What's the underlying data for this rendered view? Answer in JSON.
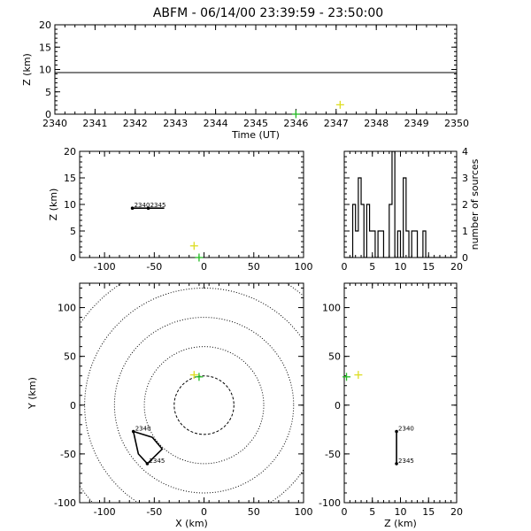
{
  "title": "ABFM - 06/14/00 23:39:59 - 23:50:00",
  "chart_data": [
    {
      "id": "time-height",
      "type": "scatter",
      "xlabel": "Time (UT)",
      "ylabel": "Z (km)",
      "xlim": [
        2340,
        2350
      ],
      "ylim": [
        0,
        20
      ],
      "xticks": [
        2340,
        2341,
        2342,
        2343,
        2344,
        2345,
        2346,
        2347,
        2348,
        2349,
        2350
      ],
      "yticks": [
        0,
        5,
        10,
        15,
        20
      ],
      "hlines": [
        {
          "y": 9.3,
          "color": "#000000"
        }
      ],
      "markers": [
        {
          "x": 2346.0,
          "y": 0,
          "color": "#22bb22",
          "symbol": "+"
        },
        {
          "x": 2347.1,
          "y": 2.1,
          "color": "#dddd22",
          "symbol": "+"
        }
      ]
    },
    {
      "id": "xz",
      "type": "scatter",
      "xlabel": "",
      "ylabel": "Z (km)",
      "xlim": [
        -125,
        100
      ],
      "ylim": [
        0,
        20
      ],
      "xticks": [
        -100,
        -50,
        0,
        50,
        100
      ],
      "yticks": [
        0,
        5,
        10,
        15,
        20
      ],
      "track": [
        [
          -72,
          9.3
        ],
        [
          -56,
          9.3
        ],
        [
          -40,
          9.3
        ]
      ],
      "labels": [
        {
          "x": -72,
          "y": 9.3,
          "text": "2340"
        },
        {
          "x": -56,
          "y": 9.3,
          "text": "2345"
        }
      ],
      "markers": [
        {
          "x": -10,
          "y": 2.2,
          "color": "#dddd22",
          "symbol": "+"
        },
        {
          "x": -5,
          "y": 0,
          "color": "#22bb22",
          "symbol": "+"
        }
      ]
    },
    {
      "id": "histogram",
      "type": "bar",
      "xlabel": "",
      "ylabel": "number of sources",
      "xlim": [
        0,
        20
      ],
      "ylim": [
        0,
        4
      ],
      "xticks": [
        0,
        5,
        10,
        15,
        20
      ],
      "yticks": [
        0,
        1,
        2,
        3,
        4
      ],
      "bin_width": 0.5,
      "bin_start": 0.5,
      "counts": [
        0,
        0,
        2,
        1,
        3,
        2,
        0,
        2,
        1,
        1,
        0,
        1,
        1,
        0,
        0,
        2,
        4,
        0,
        1,
        0,
        3,
        1,
        0,
        1,
        1,
        0,
        0,
        1,
        0,
        0,
        0,
        0,
        0,
        0,
        0,
        0,
        0,
        0,
        0
      ]
    },
    {
      "id": "xy",
      "type": "scatter",
      "xlabel": "X (km)",
      "ylabel": "Y (km)",
      "xlim": [
        -125,
        100
      ],
      "ylim": [
        -100,
        125
      ],
      "xticks": [
        -100,
        -50,
        0,
        50,
        100
      ],
      "yticks": [
        -100,
        -50,
        0,
        50,
        100
      ],
      "center": [
        0,
        0
      ],
      "range_rings_km": [
        30,
        60,
        90,
        120,
        150
      ],
      "track": [
        [
          -71,
          -27
        ],
        [
          -66,
          -50
        ],
        [
          -57,
          -60
        ],
        [
          -42,
          -45
        ],
        [
          -52,
          -33
        ],
        [
          -71,
          -27
        ]
      ],
      "labels": [
        {
          "x": -71,
          "y": -27,
          "text": "2340"
        },
        {
          "x": -57,
          "y": -60,
          "text": "2345"
        }
      ],
      "markers": [
        {
          "x": -10,
          "y": 31,
          "color": "#dddd22",
          "symbol": "+"
        },
        {
          "x": -5,
          "y": 29,
          "color": "#22bb22",
          "symbol": "+"
        }
      ]
    },
    {
      "id": "zy",
      "type": "scatter",
      "xlabel": "Z (km)",
      "ylabel": "",
      "xlim": [
        0,
        20
      ],
      "ylim": [
        -100,
        125
      ],
      "xticks": [
        0,
        5,
        10,
        15,
        20
      ],
      "yticks": [
        -100,
        -50,
        0,
        50,
        100
      ],
      "track": [
        [
          9.3,
          -27
        ],
        [
          9.3,
          -60
        ]
      ],
      "labels": [
        {
          "x": 9.3,
          "y": -27,
          "text": "2340"
        },
        {
          "x": 9.3,
          "y": -60,
          "text": "2345"
        }
      ],
      "markers": [
        {
          "x": 0.4,
          "y": 29,
          "color": "#22bb22",
          "symbol": "+"
        },
        {
          "x": 2.5,
          "y": 31,
          "color": "#dddd22",
          "symbol": "+"
        }
      ]
    }
  ]
}
